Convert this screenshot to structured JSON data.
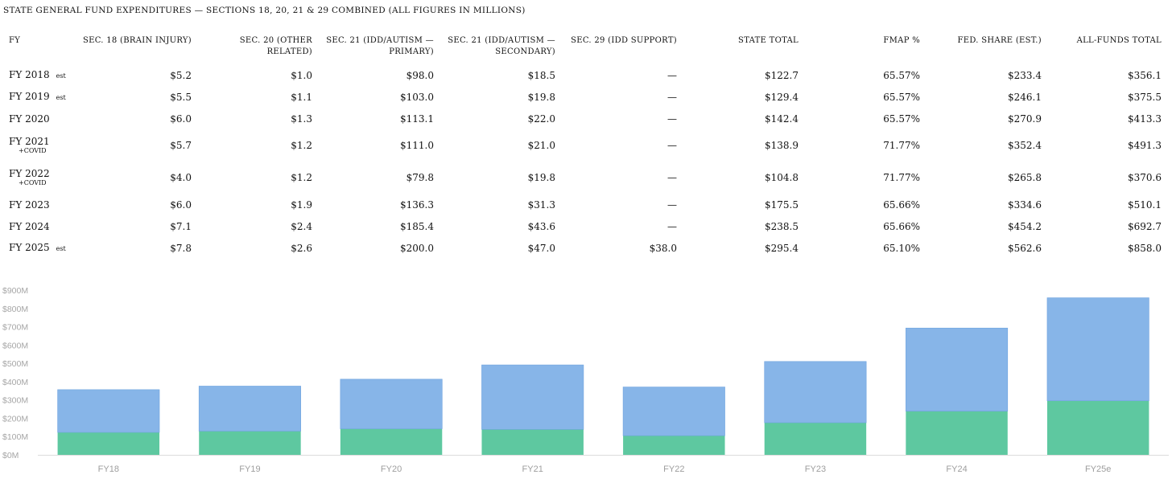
{
  "title": "STATE GENERAL FUND EXPENDITURES — SECTIONS 18, 20, 21 & 29 COMBINED (ALL FIGURES IN MILLIONS)",
  "table": {
    "headers": [
      "FY",
      "SEC. 18 (BRAIN INJURY)",
      "SEC. 20 (OTHER RELATED)",
      "SEC. 21 (IDD/AUTISM — PRIMARY)",
      "SEC. 21 (IDD/AUTISM — SECONDARY)",
      "SEC. 29 (IDD SUPPORT)",
      "STATE TOTAL",
      "FMAP %",
      "FED. SHARE (EST.)",
      "ALL-FUNDS TOTAL"
    ],
    "rows": [
      {
        "fy": "FY 2018",
        "note": "est",
        "sub": "",
        "cells": [
          "$5.2",
          "$1.0",
          "$98.0",
          "$18.5",
          "—",
          "$122.7",
          "65.57%",
          "$233.4",
          "$356.1"
        ]
      },
      {
        "fy": "FY 2019",
        "note": "est",
        "sub": "",
        "cells": [
          "$5.5",
          "$1.1",
          "$103.0",
          "$19.8",
          "—",
          "$129.4",
          "65.57%",
          "$246.1",
          "$375.5"
        ]
      },
      {
        "fy": "FY 2020",
        "note": "",
        "sub": "",
        "cells": [
          "$6.0",
          "$1.3",
          "$113.1",
          "$22.0",
          "—",
          "$142.4",
          "65.57%",
          "$270.9",
          "$413.3"
        ]
      },
      {
        "fy": "FY 2021",
        "note": "",
        "sub": "+COVID",
        "cells": [
          "$5.7",
          "$1.2",
          "$111.0",
          "$21.0",
          "—",
          "$138.9",
          "71.77%",
          "$352.4",
          "$491.3"
        ]
      },
      {
        "fy": "FY 2022",
        "note": "",
        "sub": "+COVID",
        "cells": [
          "$4.0",
          "$1.2",
          "$79.8",
          "$19.8",
          "—",
          "$104.8",
          "71.77%",
          "$265.8",
          "$370.6"
        ]
      },
      {
        "fy": "FY 2023",
        "note": "",
        "sub": "",
        "cells": [
          "$6.0",
          "$1.9",
          "$136.3",
          "$31.3",
          "—",
          "$175.5",
          "65.66%",
          "$334.6",
          "$510.1"
        ]
      },
      {
        "fy": "FY 2024",
        "note": "",
        "sub": "",
        "cells": [
          "$7.1",
          "$2.4",
          "$185.4",
          "$43.6",
          "—",
          "$238.5",
          "65.66%",
          "$454.2",
          "$692.7"
        ]
      },
      {
        "fy": "FY 2025",
        "note": "est",
        "sub": "",
        "cells": [
          "$7.8",
          "$2.6",
          "$200.0",
          "$47.0",
          "$38.0",
          "$295.4",
          "65.10%",
          "$562.6",
          "$858.0"
        ]
      }
    ]
  },
  "chart_data": {
    "type": "bar",
    "stacked": true,
    "categories": [
      "FY18",
      "FY19",
      "FY20",
      "FY21",
      "FY22",
      "FY23",
      "FY24",
      "FY25e"
    ],
    "series": [
      {
        "name": "State Total",
        "color": "#5ec8a0",
        "values": [
          122.7,
          129.4,
          142.4,
          138.9,
          104.8,
          175.5,
          238.5,
          295.4
        ]
      },
      {
        "name": "Fed. Share (Est.)",
        "color": "#87b5e8",
        "values": [
          233.4,
          246.1,
          270.9,
          352.4,
          265.8,
          334.6,
          454.2,
          562.6
        ]
      }
    ],
    "ylim": [
      0,
      900
    ],
    "yticks": [
      0,
      100,
      200,
      300,
      400,
      500,
      600,
      700,
      800,
      900
    ],
    "ytick_labels": [
      "$0M",
      "$100M",
      "$200M",
      "$300M",
      "$400M",
      "$500M",
      "$600M",
      "$700M",
      "$800M",
      "$900M"
    ],
    "title": "",
    "xlabel": "",
    "ylabel": "",
    "grid": false
  }
}
